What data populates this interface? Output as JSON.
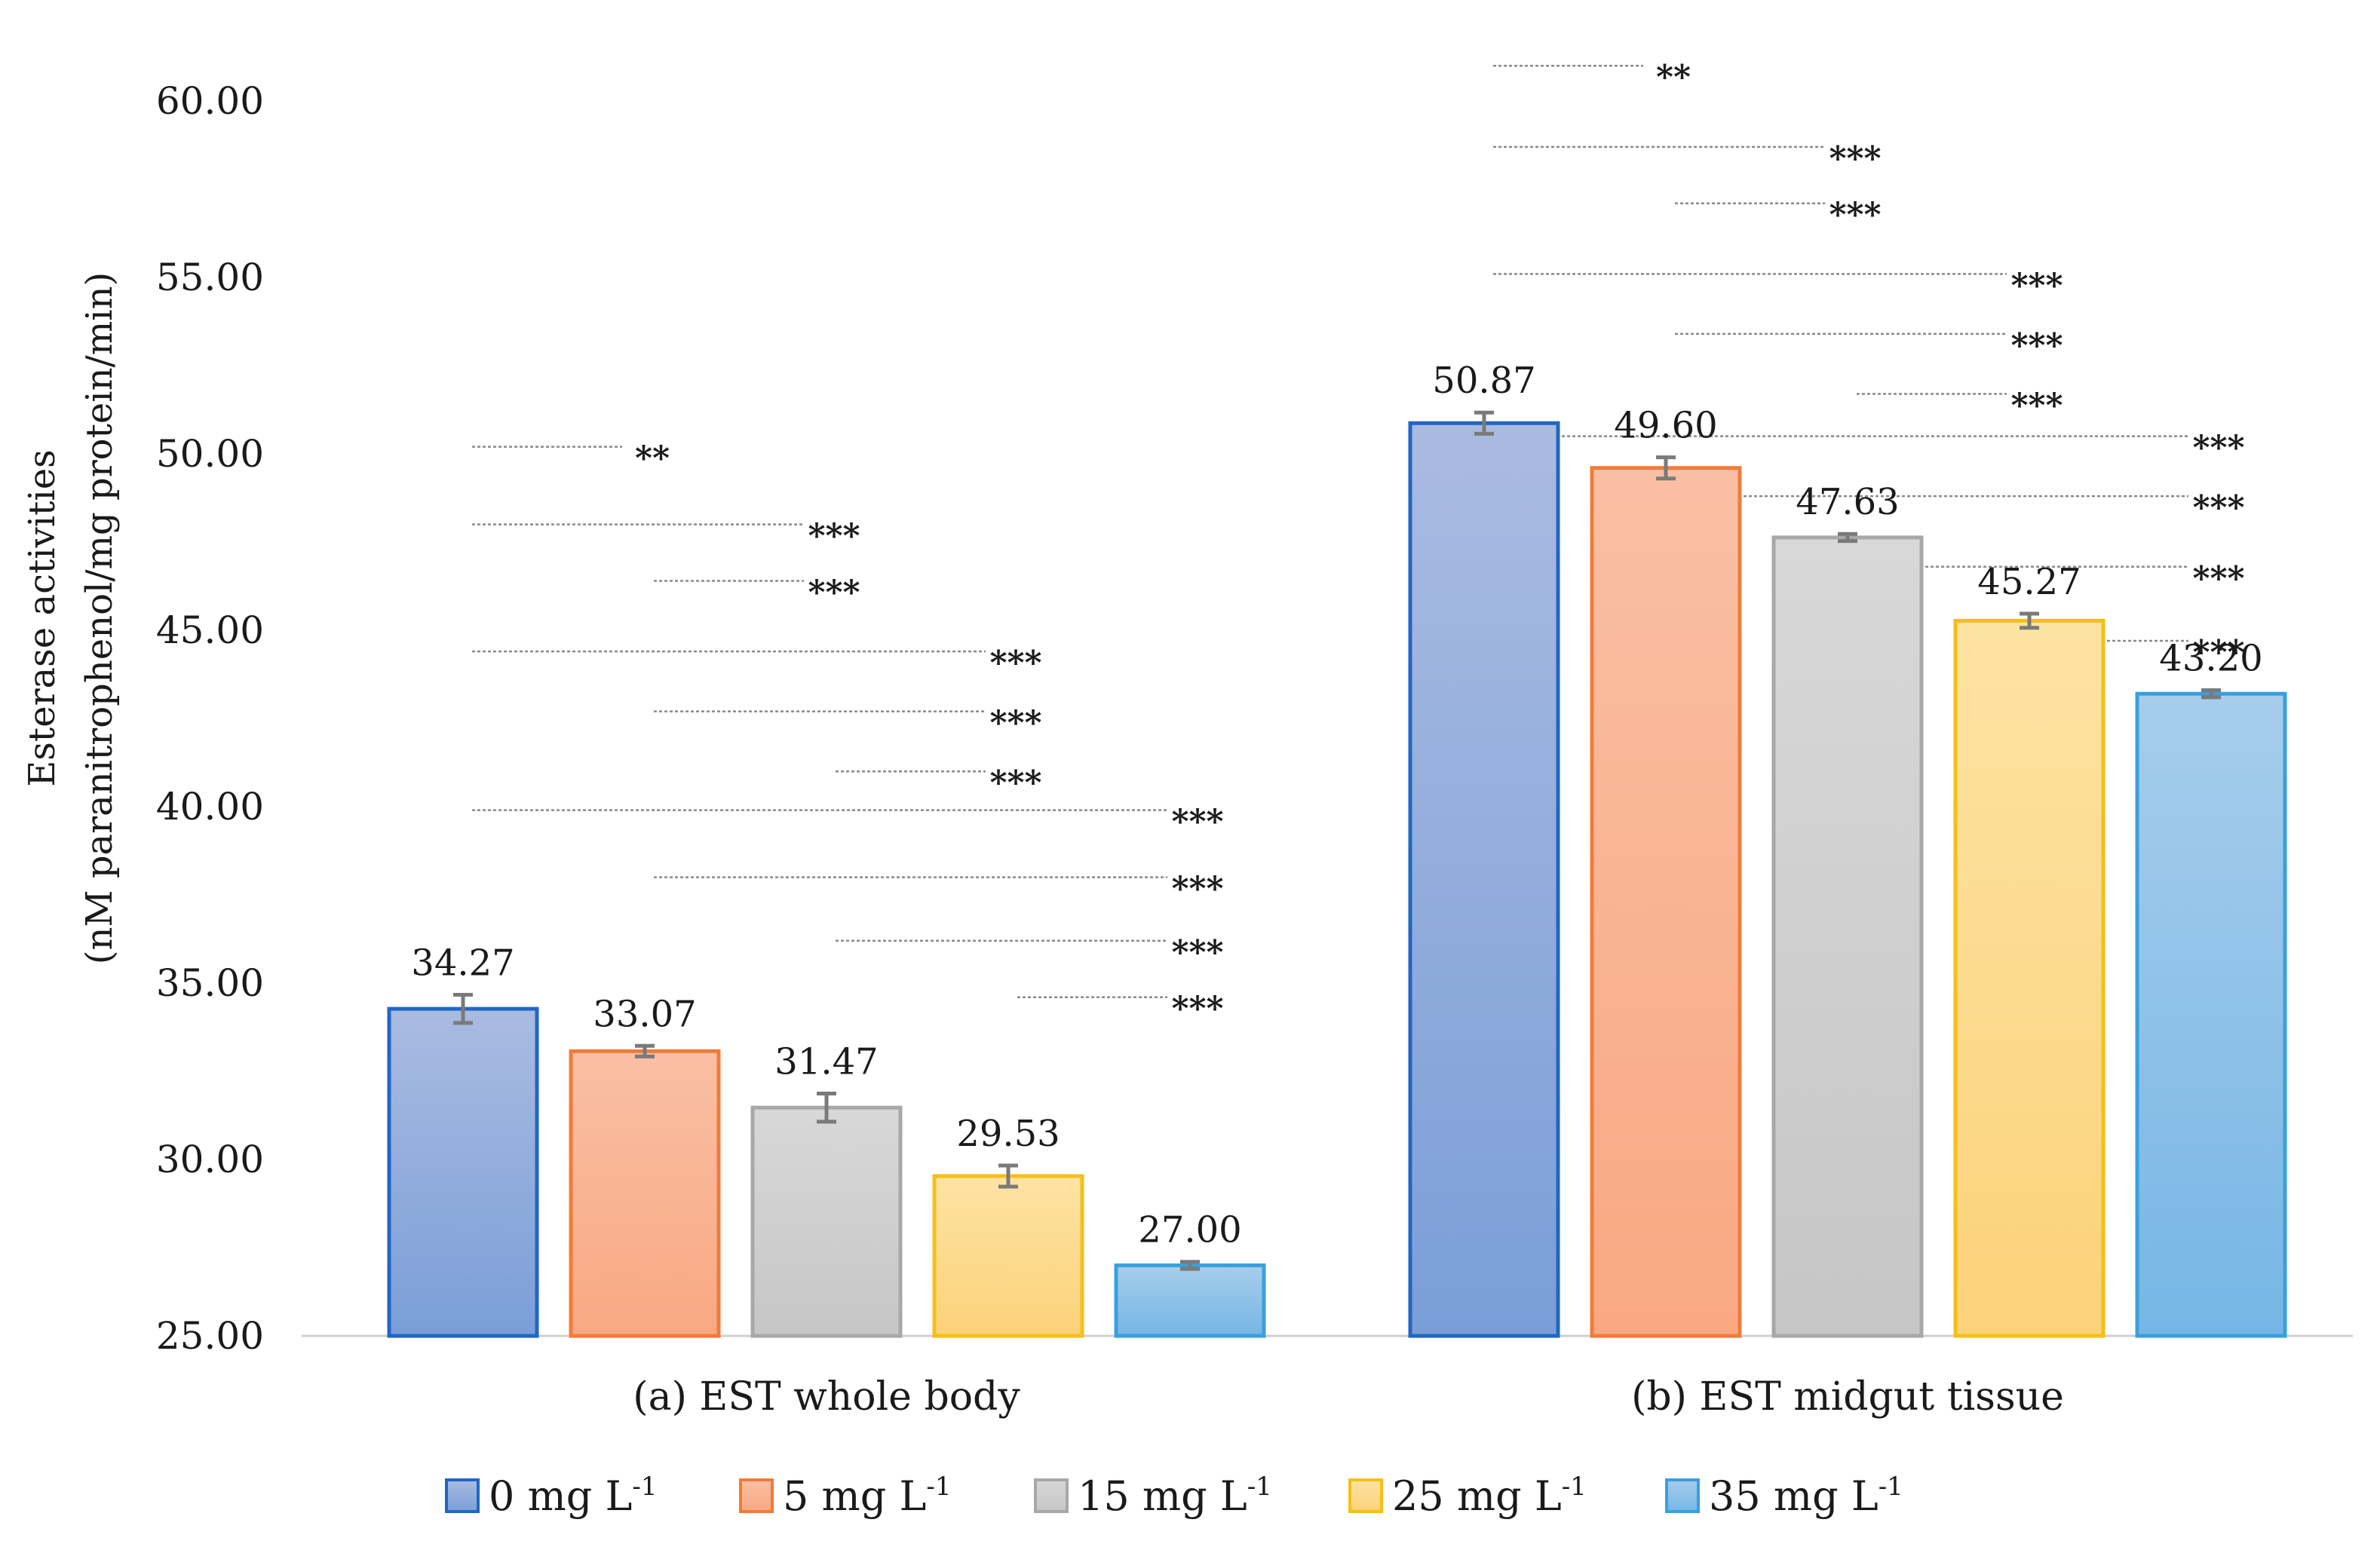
{
  "chart_data": {
    "type": "bar",
    "ylabel_line1": "Esterase activities",
    "ylabel_line2": "(nM paranitrophenol/mg protein/min)",
    "ylim": [
      25,
      61.5
    ],
    "yticks": [
      25,
      30,
      35,
      40,
      45,
      50,
      55,
      60
    ],
    "ytick_labels": [
      "25.00",
      "30.00",
      "35.00",
      "40.00",
      "45.00",
      "50.00",
      "55.00",
      "60.00"
    ],
    "grid": false,
    "legend_position": "bottom",
    "series": [
      {
        "name": "0 mg L",
        "sup": "-1",
        "color_top": "#aabbe1",
        "color_bottom": "#7a9ed8",
        "stroke": "#2266c4"
      },
      {
        "name": "5 mg L",
        "sup": "-1",
        "color_top": "#f9bfa4",
        "color_bottom": "#f9a882",
        "stroke": "#f07c3a"
      },
      {
        "name": "15 mg L",
        "sup": "-1",
        "color_top": "#d8d8d8",
        "color_bottom": "#c6c6c6",
        "stroke": "#a8a8a8"
      },
      {
        "name": "25 mg L",
        "sup": "-1",
        "color_top": "#fde3a3",
        "color_bottom": "#fcd27a",
        "stroke": "#f5bf18"
      },
      {
        "name": "35 mg L",
        "sup": "-1",
        "color_top": "#a7cdeb",
        "color_bottom": "#76b6e6",
        "stroke": "#3aa0dc"
      }
    ],
    "groups": [
      {
        "label": "(a) EST whole body",
        "values": [
          34.27,
          33.07,
          31.47,
          29.53,
          27.0
        ],
        "value_labels": [
          "34.27",
          "33.07",
          "31.47",
          "29.53",
          "27.00"
        ],
        "errors": [
          0.4,
          0.15,
          0.4,
          0.3,
          0.1
        ],
        "comparisons": [
          {
            "from": 0,
            "to": 1,
            "y": 50.2,
            "label": "**"
          },
          {
            "from": 0,
            "to": 2,
            "y": 48.0,
            "label": "***"
          },
          {
            "from": 1,
            "to": 2,
            "y": 46.4,
            "label": "***"
          },
          {
            "from": 0,
            "to": 3,
            "y": 44.4,
            "label": "***"
          },
          {
            "from": 1,
            "to": 3,
            "y": 42.7,
            "label": "***"
          },
          {
            "from": 2,
            "to": 3,
            "y": 41.0,
            "label": "***"
          },
          {
            "from": 0,
            "to": 4,
            "y": 39.9,
            "label": "***"
          },
          {
            "from": 1,
            "to": 4,
            "y": 38.0,
            "label": "***"
          },
          {
            "from": 2,
            "to": 4,
            "y": 36.2,
            "label": "***"
          },
          {
            "from": 3,
            "to": 4,
            "y": 34.6,
            "label": "***"
          }
        ]
      },
      {
        "label": "(b) EST midgut tissue",
        "values": [
          50.87,
          49.6,
          47.63,
          45.27,
          43.2
        ],
        "value_labels": [
          "50.87",
          "49.60",
          "47.63",
          "45.27",
          "43.20"
        ],
        "errors": [
          0.3,
          0.3,
          0.1,
          0.2,
          0.1
        ],
        "comparisons": [
          {
            "from": 0,
            "to": 1,
            "y": 61.0,
            "label": "**"
          },
          {
            "from": 0,
            "to": 2,
            "y": 58.7,
            "label": "***"
          },
          {
            "from": 1,
            "to": 2,
            "y": 57.1,
            "label": "***"
          },
          {
            "from": 0,
            "to": 3,
            "y": 55.1,
            "label": "***"
          },
          {
            "from": 1,
            "to": 3,
            "y": 53.4,
            "label": "***"
          },
          {
            "from": 2,
            "to": 3,
            "y": 51.7,
            "label": "***"
          },
          {
            "from": 0,
            "to": 4,
            "y": 50.5,
            "label": "***"
          },
          {
            "from": 1,
            "to": 4,
            "y": 48.8,
            "label": "***"
          },
          {
            "from": 2,
            "to": 4,
            "y": 46.8,
            "label": "***"
          },
          {
            "from": 3,
            "to": 4,
            "y": 44.7,
            "label": "***"
          }
        ]
      }
    ]
  }
}
